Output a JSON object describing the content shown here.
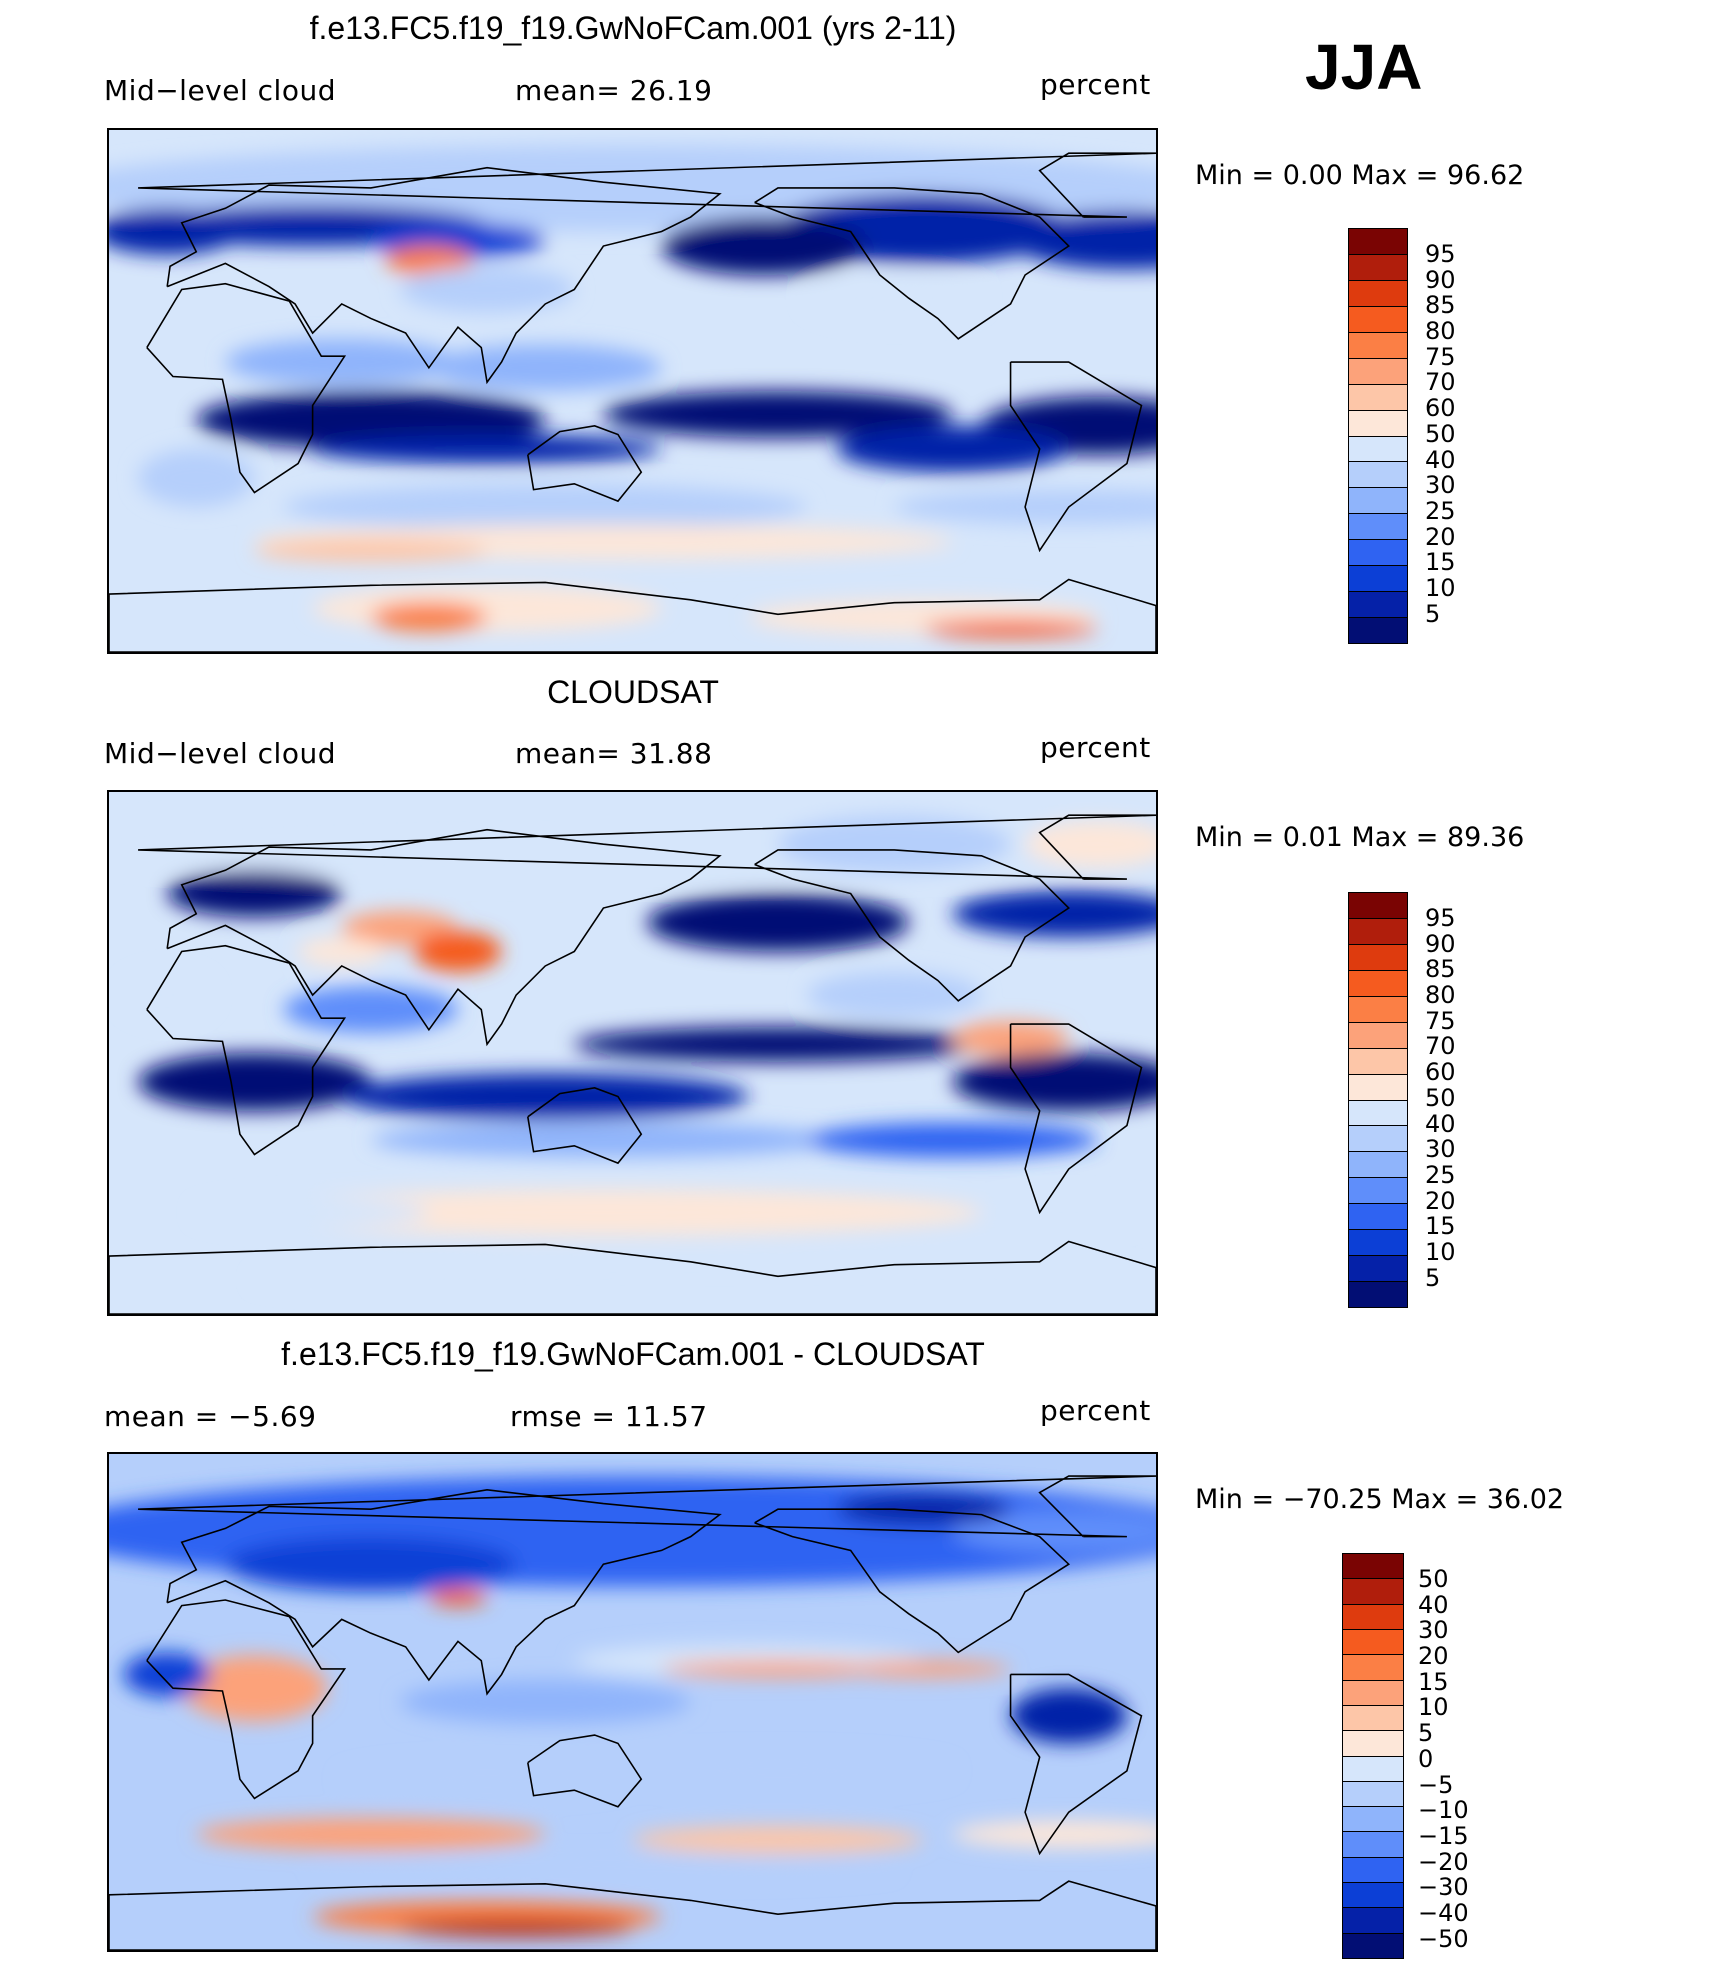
{
  "season": "JJA",
  "panels": [
    {
      "title": "f.e13.FC5.f19_f19.GwNoFCam.001 (yrs 2-11)",
      "left_label": "Mid−level  cloud",
      "center_label": "mean=   26.19",
      "units": "percent",
      "minmax": "Min  =      0.00  Max  =     96.62",
      "colorbar_labels": [
        "95",
        "90",
        "85",
        "80",
        "75",
        "70",
        "60",
        "50",
        "40",
        "30",
        "25",
        "20",
        "15",
        "10",
        "5"
      ],
      "field": "model"
    },
    {
      "title": "CLOUDSAT",
      "left_label": "Mid−level  cloud",
      "center_label": "mean=   31.88",
      "units": "percent",
      "minmax": "Min  =      0.01  Max  =     89.36",
      "colorbar_labels": [
        "95",
        "90",
        "85",
        "80",
        "75",
        "70",
        "60",
        "50",
        "40",
        "30",
        "25",
        "20",
        "15",
        "10",
        "5"
      ],
      "field": "obs"
    },
    {
      "title": "f.e13.FC5.f19_f19.GwNoFCam.001 - CLOUDSAT",
      "left_label": "mean  =    −5.69",
      "center_label": "rmse  =    11.57",
      "units": "percent",
      "minmax": "Min  = −70.25  Max  =    36.02",
      "colorbar_labels": [
        "50",
        "40",
        "30",
        "20",
        "15",
        "10",
        "5",
        "0",
        "−5",
        "−10",
        "−15",
        "−20",
        "−30",
        "−40",
        "−50"
      ],
      "field": "diff"
    }
  ],
  "colors": {
    "scale": [
      "#7a0403",
      "#b01e0c",
      "#de3b0e",
      "#f55b1f",
      "#fb7f45",
      "#fca27a",
      "#fdc6a8",
      "#fde7d9",
      "#d6e6fb",
      "#b5cffb",
      "#8fb4fb",
      "#5f8efa",
      "#2f63f2",
      "#0c3fd6",
      "#0521a8",
      "#020e74"
    ]
  }
}
